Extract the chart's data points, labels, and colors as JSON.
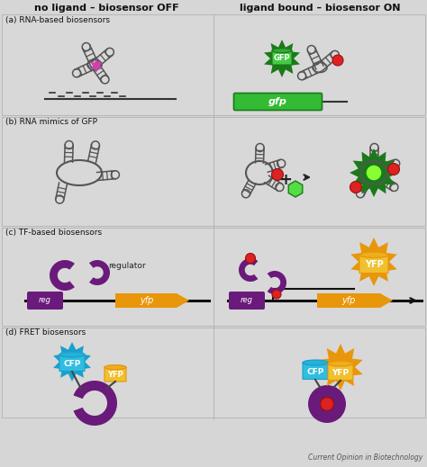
{
  "title_left": "no ligand – biosensor OFF",
  "title_right": "ligand bound – biosensor ON",
  "label_a": "(a) RNA-based biosensors",
  "label_b": "(b) RNA mimics of GFP",
  "label_c": "(c) TF-based biosensors",
  "label_d": "(d) FRET biosensors",
  "footer": "Current Opinion in Biotechnology",
  "bg_color": "#d6d6d6",
  "section_bg": "#d6d6d6",
  "green_dark": "#1a7a1a",
  "green_bright": "#33bb33",
  "orange": "#e8960a",
  "orange_yellow": "#f0c030",
  "purple": "#6a1a7a",
  "cyan_blue": "#1aa0cc",
  "cyan_light": "#30bde0",
  "red_bright": "#dd2222",
  "star_purple": "#cc44aa",
  "rna_color": "#555555",
  "dna_color": "#111111",
  "white": "#ffffff",
  "border_color": "#aaaaaa"
}
